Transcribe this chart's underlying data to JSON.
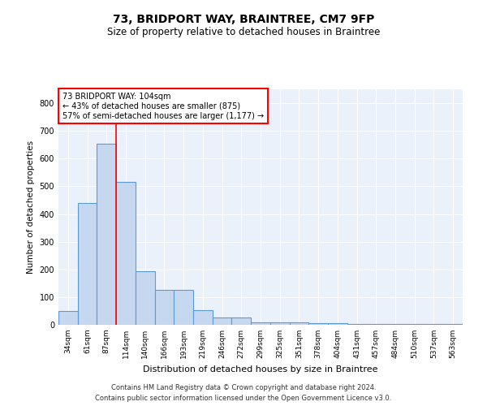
{
  "title": "73, BRIDPORT WAY, BRAINTREE, CM7 9FP",
  "subtitle": "Size of property relative to detached houses in Braintree",
  "xlabel": "Distribution of detached houses by size in Braintree",
  "ylabel": "Number of detached properties",
  "bar_color": "#c5d8f0",
  "bar_edge_color": "#5b9bd5",
  "background_color": "#eaf1fb",
  "grid_color": "#ffffff",
  "bin_labels": [
    "34sqm",
    "61sqm",
    "87sqm",
    "114sqm",
    "140sqm",
    "166sqm",
    "193sqm",
    "219sqm",
    "246sqm",
    "272sqm",
    "299sqm",
    "325sqm",
    "351sqm",
    "378sqm",
    "404sqm",
    "431sqm",
    "457sqm",
    "484sqm",
    "510sqm",
    "537sqm",
    "563sqm"
  ],
  "bar_heights": [
    50,
    440,
    655,
    515,
    193,
    125,
    125,
    52,
    27,
    27,
    10,
    10,
    10,
    5,
    5,
    3,
    2,
    2,
    2,
    2,
    2
  ],
  "annotation_line1": "73 BRIDPORT WAY: 104sqm",
  "annotation_line2": "← 43% of detached houses are smaller (875)",
  "annotation_line3": "57% of semi-detached houses are larger (1,177) →",
  "vline_x": 2.5,
  "ylim": [
    0,
    850
  ],
  "yticks": [
    0,
    100,
    200,
    300,
    400,
    500,
    600,
    700,
    800
  ],
  "footer1": "Contains HM Land Registry data © Crown copyright and database right 2024.",
  "footer2": "Contains public sector information licensed under the Open Government Licence v3.0."
}
